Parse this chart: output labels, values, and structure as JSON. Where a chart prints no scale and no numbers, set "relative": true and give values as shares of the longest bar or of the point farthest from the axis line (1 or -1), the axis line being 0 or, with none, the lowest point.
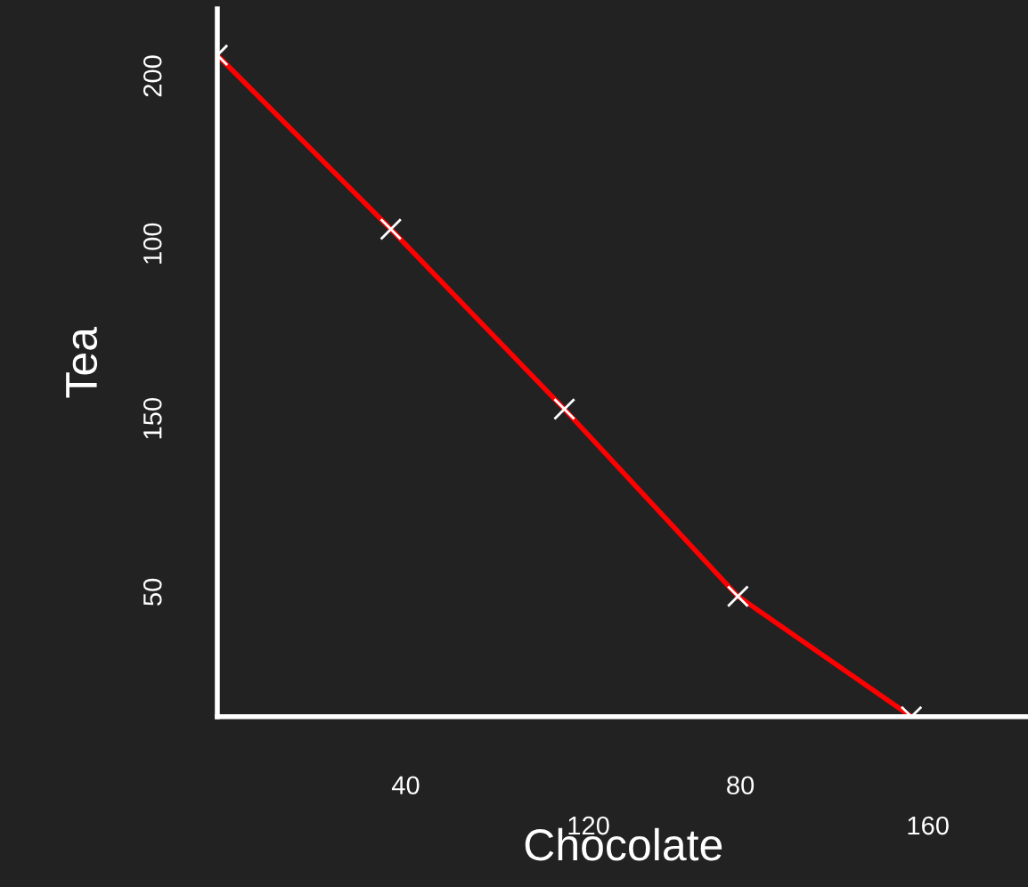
{
  "chart_data": {
    "type": "line",
    "relative": true,
    "xlabel": "Chocolate",
    "ylabel": "Tea",
    "categories": [
      null,
      null,
      null,
      null,
      null
    ],
    "series": [
      {
        "color": "#ff0000",
        "values": [
          1,
          0.737,
          0.465,
          0.182,
          0
        ]
      }
    ],
    "marker": "cross",
    "line_style": "solid",
    "annotations": [
      "200",
      "100",
      "150",
      "50",
      "40",
      "120",
      "80",
      "160"
    ]
  }
}
